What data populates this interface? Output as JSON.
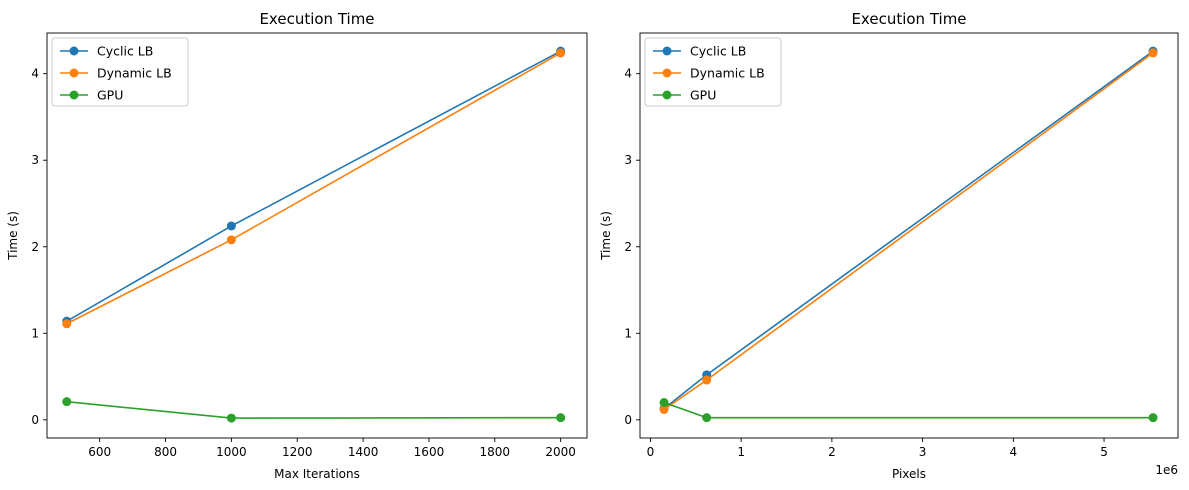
{
  "chart_data": [
    {
      "type": "line",
      "title": "Execution Time",
      "xlabel": "Max Iterations",
      "ylabel": "Time (s)",
      "x_offset_label": "",
      "xlim": [
        440,
        2080
      ],
      "ylim": [
        -0.21,
        4.47
      ],
      "xticks": [
        600,
        800,
        1000,
        1200,
        1400,
        1600,
        1800,
        2000
      ],
      "yticks": [
        0,
        1,
        2,
        3,
        4
      ],
      "grid": false,
      "legend_position": "top-left",
      "x": [
        500,
        1000,
        2000
      ],
      "series": [
        {
          "name": "Cyclic LB",
          "color": "#1f77b4",
          "values": [
            1.14,
            2.24,
            4.26
          ]
        },
        {
          "name": "Dynamic LB",
          "color": "#ff7f0e",
          "values": [
            1.11,
            2.08,
            4.24
          ]
        },
        {
          "name": "GPU",
          "color": "#2ca02c",
          "values": [
            0.21,
            0.02,
            0.025
          ]
        }
      ]
    },
    {
      "type": "line",
      "title": "Execution Time",
      "xlabel": "Pixels",
      "ylabel": "Time (s)",
      "x_offset_label": "1e6",
      "x_unit_scale": 1000000,
      "xlim": [
        -115000,
        5815000
      ],
      "ylim": [
        -0.21,
        4.47
      ],
      "xticks": [
        0,
        1000000,
        2000000,
        3000000,
        4000000,
        5000000
      ],
      "xtick_labels": [
        "0",
        "1",
        "2",
        "3",
        "4",
        "5"
      ],
      "yticks": [
        0,
        1,
        2,
        3,
        4
      ],
      "grid": false,
      "legend_position": "top-left",
      "x": [
        150000,
        620000,
        5540000
      ],
      "series": [
        {
          "name": "Cyclic LB",
          "color": "#1f77b4",
          "values": [
            0.13,
            0.52,
            4.26
          ]
        },
        {
          "name": "Dynamic LB",
          "color": "#ff7f0e",
          "values": [
            0.12,
            0.46,
            4.24
          ]
        },
        {
          "name": "GPU",
          "color": "#2ca02c",
          "values": [
            0.2,
            0.025,
            0.025
          ]
        }
      ]
    }
  ]
}
